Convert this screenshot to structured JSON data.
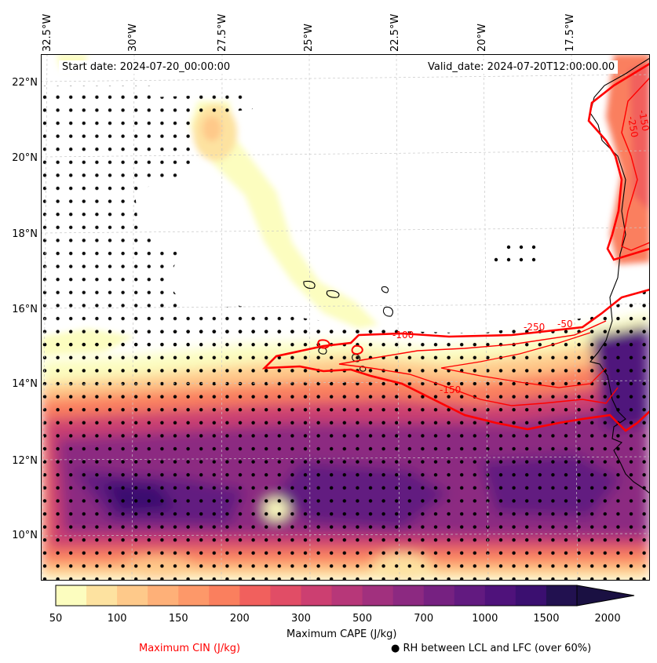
{
  "map": {
    "start_date": "Start date: 2024-07-20_00:00:00",
    "valid_date": "Valid_date: 2024-07-20T12:00:00.00",
    "longitude_labels": [
      "32.5°W",
      "30°W",
      "27.5°W",
      "25°W",
      "22.5°W",
      "20°W",
      "17.5°W"
    ],
    "latitude_labels": [
      "22°N",
      "20°N",
      "18°N",
      "16°N",
      "14°N",
      "12°N",
      "10°N"
    ],
    "cin_contour_labels": [
      "-250",
      "-150",
      "-250",
      "-50",
      "-100",
      "-150"
    ],
    "colors": {
      "cape_low": "#fcfdbf",
      "cape_mid": "#f1605d",
      "cape_high": "#221150",
      "cin_contour": "#ff0000",
      "coastline": "#000000",
      "stipple": "#000000"
    }
  },
  "colorbar": {
    "label": "Maximum CAPE (J/kg)",
    "ticks": [
      "50",
      "100",
      "150",
      "200",
      "300",
      "500",
      "700",
      "1000",
      "1500",
      "2000"
    ],
    "colors": [
      "#fcfdbf",
      "#fde2a0",
      "#fec98a",
      "#feb078",
      "#fd9869",
      "#fa7f5e",
      "#f1605d",
      "#e14d66",
      "#cc3f71",
      "#b73779",
      "#a1307e",
      "#8c2981",
      "#762181",
      "#621a80",
      "#4f127b",
      "#3b0f70",
      "#221150",
      "#1a1042"
    ]
  },
  "legend": {
    "cin": "Maximum CIN (J/kg)",
    "cin_color": "#ff0000",
    "rh_marker": "●",
    "rh": "RH between LCL and LFC (over 60%)"
  }
}
